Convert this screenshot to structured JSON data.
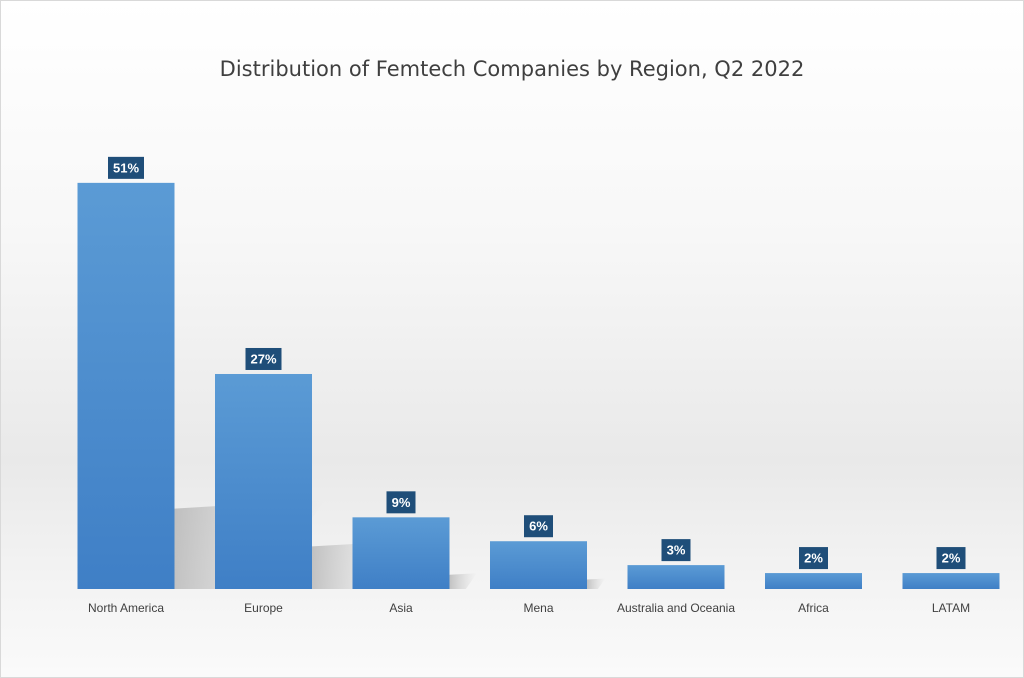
{
  "chart_data": {
    "type": "bar",
    "title": "Distribution of Femtech Companies by Region, Q2 2022",
    "categories": [
      "North America",
      "Europe",
      "Asia",
      "Mena",
      "Australia and Oceania",
      "Africa",
      "LATAM"
    ],
    "values": [
      51,
      27,
      9,
      6,
      3,
      2,
      2
    ],
    "data_labels": [
      "51%",
      "27%",
      "9%",
      "6%",
      "3%",
      "2%",
      "2%"
    ],
    "unit": "%",
    "xlabel": "",
    "ylabel": "",
    "ylim": [
      0,
      55
    ],
    "grid": false,
    "legend": "none",
    "colors": {
      "bar_top": "#5b9bd5",
      "bar_bottom": "#3f7fc6",
      "label_bg": "#1f4e79",
      "label_text": "#ffffff"
    }
  }
}
